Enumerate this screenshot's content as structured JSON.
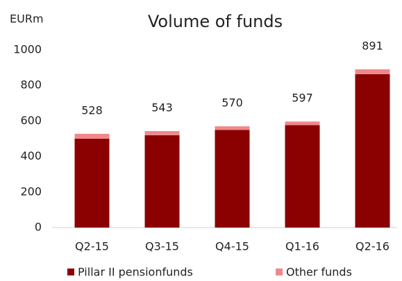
{
  "chart_data": {
    "type": "stacked-bar",
    "title": "Volume of funds",
    "y_label": "EURm",
    "categories": [
      "Q2-15",
      "Q3-15",
      "Q4-15",
      "Q1-16",
      "Q2-16"
    ],
    "series": [
      {
        "name": "Pillar II pensionfunds",
        "color": "#8b0000",
        "values": [
          500,
          520,
          550,
          577,
          864
        ]
      },
      {
        "name": "Other funds",
        "color": "#f0888a",
        "values": [
          28,
          23,
          20,
          20,
          27
        ]
      }
    ],
    "totals": [
      528,
      543,
      570,
      597,
      891
    ],
    "ylim": [
      0,
      1000
    ],
    "yticks": [
      0,
      200,
      400,
      600,
      800,
      1000
    ],
    "grid": false,
    "legend": "bottom"
  }
}
